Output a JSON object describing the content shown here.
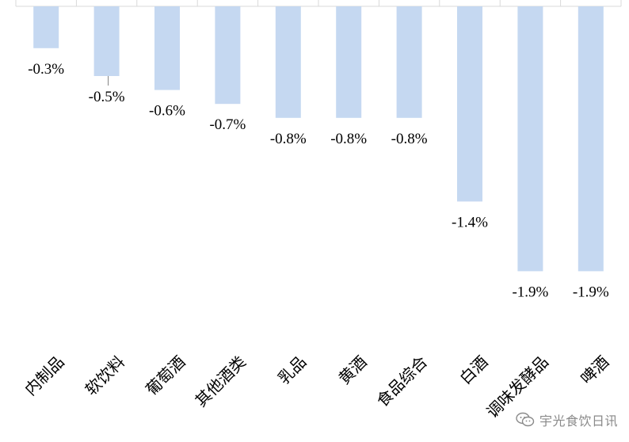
{
  "chart_data": {
    "type": "bar",
    "categories": [
      "内制品",
      "软饮料",
      "葡萄酒",
      "其他酒类",
      "乳品",
      "黄酒",
      "食品综合",
      "白酒",
      "调味发酵品",
      "啤酒"
    ],
    "values": [
      -0.3,
      -0.5,
      -0.6,
      -0.7,
      -0.8,
      -0.8,
      -0.8,
      -1.4,
      -1.9,
      -1.9
    ],
    "data_labels": [
      "-0.3%",
      "-0.5%",
      "-0.6%",
      "-0.7%",
      "-0.8%",
      "-0.8%",
      "-0.8%",
      "-1.4%",
      "-1.9%",
      "-1.9%"
    ],
    "title": "",
    "xlabel": "",
    "ylabel": "",
    "ylim": [
      -2.0,
      0
    ],
    "grid": false,
    "legend": "none",
    "colors": {
      "bar": "#c5d8f1",
      "axis": "#d9d9d9",
      "label": "#000000",
      "leader": "#7f7f7f"
    }
  },
  "watermark": {
    "text": "宇光食饮日讯",
    "icon": "wechat-icon"
  }
}
